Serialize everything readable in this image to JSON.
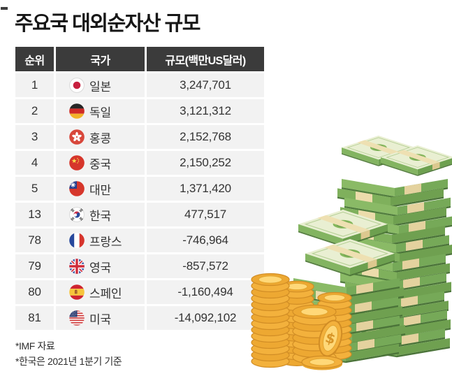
{
  "page": {
    "title": "주요국 대외순자산 규모"
  },
  "table": {
    "columns": [
      {
        "key": "rank",
        "label": "순위"
      },
      {
        "key": "country",
        "label": "국가"
      },
      {
        "key": "value",
        "label": "규모(백만US달러)"
      }
    ],
    "rows": [
      {
        "rank": "1",
        "country": "일본",
        "flag_icon": "japan-flag-icon",
        "value": "3,247,701"
      },
      {
        "rank": "2",
        "country": "독일",
        "flag_icon": "germany-flag-icon",
        "value": "3,121,312"
      },
      {
        "rank": "3",
        "country": "홍콩",
        "flag_icon": "hong-kong-flag-icon",
        "value": "2,152,768"
      },
      {
        "rank": "4",
        "country": "중국",
        "flag_icon": "china-flag-icon",
        "value": "2,150,252"
      },
      {
        "rank": "5",
        "country": "대만",
        "flag_icon": "taiwan-flag-icon",
        "value": "1,371,420"
      },
      {
        "rank": "13",
        "country": "한국",
        "flag_icon": "south-korea-flag-icon",
        "value": "477,517"
      },
      {
        "rank": "78",
        "country": "프랑스",
        "flag_icon": "france-flag-icon",
        "value": "-746,964"
      },
      {
        "rank": "79",
        "country": "영국",
        "flag_icon": "united-kingdom-flag-icon",
        "value": "-857,572"
      },
      {
        "rank": "80",
        "country": "스페인",
        "flag_icon": "spain-flag-icon",
        "value": "-1,160,494"
      },
      {
        "rank": "81",
        "country": "미국",
        "flag_icon": "united-states-flag-icon",
        "value": "-14,092,102"
      }
    ]
  },
  "footnotes": [
    "*IMF 자료",
    "*한국은 2021년 1분기 기준"
  ],
  "colors": {
    "header_bg": "#3b3b3b",
    "header_text": "#ffffff",
    "row_bg": "#f2f2f2",
    "body_text": "#333333",
    "title_text": "#161616",
    "bill_green": "#7fb05c",
    "band_beige": "#ecdcab",
    "coin_gold": "#f3b13c"
  },
  "illustration": {
    "description": "stacks of banded green dollar-bill bundles and gold dollar coins"
  },
  "chart_data": {
    "type": "table",
    "title": "주요국 대외순자산 규모",
    "columns": [
      "순위",
      "국가",
      "규모(백만US달러)"
    ],
    "unit": "백만 US달러",
    "rows": [
      {
        "rank": 1,
        "country": "일본",
        "value": 3247701
      },
      {
        "rank": 2,
        "country": "독일",
        "value": 3121312
      },
      {
        "rank": 3,
        "country": "홍콩",
        "value": 2152768
      },
      {
        "rank": 4,
        "country": "중국",
        "value": 2150252
      },
      {
        "rank": 5,
        "country": "대만",
        "value": 1371420
      },
      {
        "rank": 13,
        "country": "한국",
        "value": 477517
      },
      {
        "rank": 78,
        "country": "프랑스",
        "value": -746964
      },
      {
        "rank": 79,
        "country": "영국",
        "value": -857572
      },
      {
        "rank": 80,
        "country": "스페인",
        "value": -1160494
      },
      {
        "rank": 81,
        "country": "미국",
        "value": -14092102
      }
    ],
    "notes": [
      "*IMF 자료",
      "*한국은 2021년 1분기 기준"
    ]
  }
}
